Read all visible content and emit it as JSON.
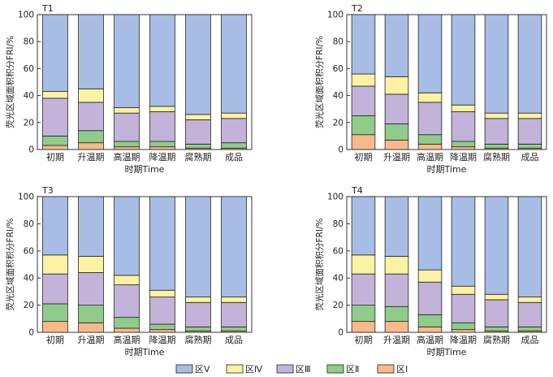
{
  "colors": {
    "I": "#f8b98b",
    "II": "#8fcc8a",
    "III": "#c3b3da",
    "IV": "#fcf2a1",
    "V": "#a7bde6",
    "edge": "#222222"
  },
  "legend": {
    "V": "区Ⅴ",
    "IV": "区Ⅳ",
    "III": "区Ⅲ",
    "II": "区Ⅱ",
    "I": "区Ⅰ"
  },
  "chart_data": [
    {
      "type": "bar",
      "title": "T1",
      "xlabel": "时期Time",
      "ylabel": "荧光区域面积积分FRI/%",
      "ylim": [
        0,
        100
      ],
      "yticks": [
        0,
        20,
        40,
        60,
        80,
        100
      ],
      "categories": [
        "初期",
        "升温期",
        "高温期",
        "降温期",
        "腐熟期",
        "成品"
      ],
      "series": [
        {
          "name": "区Ⅰ",
          "values": [
            3,
            5,
            2,
            2,
            1,
            1
          ]
        },
        {
          "name": "区Ⅱ",
          "values": [
            7,
            9,
            4,
            4,
            3,
            4
          ]
        },
        {
          "name": "区Ⅲ",
          "values": [
            28,
            21,
            21,
            22,
            18,
            18
          ]
        },
        {
          "name": "区Ⅳ",
          "values": [
            5,
            10,
            4,
            4,
            4,
            4
          ]
        },
        {
          "name": "区Ⅴ",
          "values": [
            57,
            55,
            69,
            68,
            74,
            73
          ]
        }
      ]
    },
    {
      "type": "bar",
      "title": "T2",
      "xlabel": "时期Time",
      "ylabel": "荧光区域面积积分FRI/%",
      "ylim": [
        0,
        100
      ],
      "yticks": [
        0,
        20,
        40,
        60,
        80,
        100
      ],
      "categories": [
        "初期",
        "升温期",
        "高温期",
        "降温期",
        "腐熟期",
        "成品"
      ],
      "series": [
        {
          "name": "区Ⅰ",
          "values": [
            11,
            7,
            4,
            2,
            1,
            1
          ]
        },
        {
          "name": "区Ⅱ",
          "values": [
            14,
            12,
            7,
            4,
            3,
            3
          ]
        },
        {
          "name": "区Ⅲ",
          "values": [
            22,
            22,
            24,
            22,
            19,
            19
          ]
        },
        {
          "name": "区Ⅳ",
          "values": [
            9,
            13,
            7,
            5,
            4,
            4
          ]
        },
        {
          "name": "区Ⅴ",
          "values": [
            44,
            46,
            58,
            67,
            73,
            73
          ]
        }
      ]
    },
    {
      "type": "bar",
      "title": "T3",
      "xlabel": "时期Time",
      "ylabel": "荧光区域面积积分FRI/%",
      "ylim": [
        0,
        100
      ],
      "yticks": [
        0,
        20,
        40,
        60,
        80,
        100
      ],
      "categories": [
        "初期",
        "升温期",
        "高温期",
        "降温期",
        "腐熟期",
        "成品"
      ],
      "series": [
        {
          "name": "区Ⅰ",
          "values": [
            8,
            7,
            3,
            2,
            1,
            1
          ]
        },
        {
          "name": "区Ⅱ",
          "values": [
            13,
            13,
            8,
            4,
            3,
            3
          ]
        },
        {
          "name": "区Ⅲ",
          "values": [
            22,
            24,
            24,
            20,
            18,
            18
          ]
        },
        {
          "name": "区Ⅳ",
          "values": [
            14,
            12,
            7,
            5,
            4,
            4
          ]
        },
        {
          "name": "区Ⅴ",
          "values": [
            43,
            44,
            58,
            69,
            74,
            74
          ]
        }
      ]
    },
    {
      "type": "bar",
      "title": "T4",
      "xlabel": "时期Time",
      "ylabel": "荧光区域面积积分FRI/%",
      "ylim": [
        0,
        100
      ],
      "yticks": [
        0,
        20,
        40,
        60,
        80,
        100
      ],
      "categories": [
        "初期",
        "升温期",
        "高温期",
        "降温期",
        "腐熟期",
        "成品"
      ],
      "series": [
        {
          "name": "区Ⅰ",
          "values": [
            8,
            8,
            4,
            2,
            1,
            1
          ]
        },
        {
          "name": "区Ⅱ",
          "values": [
            12,
            11,
            9,
            5,
            3,
            3
          ]
        },
        {
          "name": "区Ⅲ",
          "values": [
            23,
            24,
            24,
            21,
            20,
            18
          ]
        },
        {
          "name": "区Ⅳ",
          "values": [
            14,
            13,
            9,
            6,
            4,
            4
          ]
        },
        {
          "name": "区Ⅴ",
          "values": [
            43,
            44,
            54,
            66,
            72,
            74
          ]
        }
      ]
    }
  ]
}
